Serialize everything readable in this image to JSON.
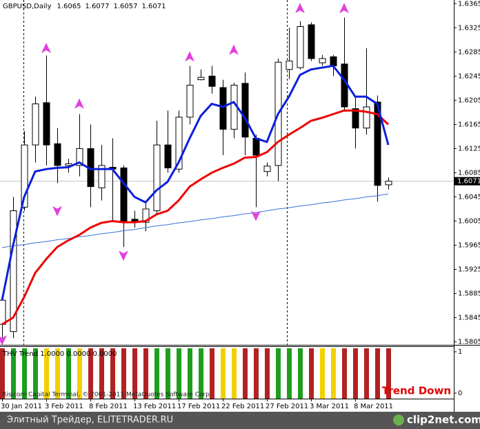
{
  "chart_data": [
    {
      "type": "candlestick",
      "title": "GBPUSD,Daily",
      "categories": [
        "30 Jan 2011",
        null,
        null,
        null,
        "3 Feb 2011",
        null,
        null,
        null,
        "8 Feb 2011",
        null,
        null,
        null,
        "13 Feb 2011",
        null,
        null,
        null,
        "17 Feb 2011",
        null,
        null,
        null,
        "22 Feb 2011",
        null,
        null,
        null,
        "27 Feb 2011",
        null,
        null,
        null,
        "3 Mar 2011",
        null,
        null,
        null,
        "8 Mar 2011",
        null,
        null,
        null
      ],
      "open": [
        1.5834,
        1.5822,
        1.6028,
        1.6131,
        1.6201,
        1.6133,
        1.6097,
        1.6097,
        1.6125,
        1.606,
        1.6094,
        1.6093,
        1.6008,
        1.6003,
        1.6022,
        1.6131,
        1.6091,
        1.6177,
        1.6239,
        1.6245,
        1.6226,
        1.6157,
        1.6233,
        1.6142,
        1.6087,
        1.6097,
        1.6256,
        1.6259,
        1.633,
        1.6267,
        1.6277,
        1.6265,
        1.6191,
        1.6159,
        1.6202,
        1.6065
      ],
      "high": [
        1.5879,
        1.6045,
        1.6154,
        1.6211,
        1.6279,
        1.6159,
        1.6108,
        1.6182,
        1.6165,
        1.6131,
        1.6142,
        1.6097,
        1.6022,
        1.6037,
        1.6171,
        1.6188,
        1.6188,
        1.6262,
        1.6256,
        1.6262,
        1.6239,
        1.6234,
        1.6251,
        1.6148,
        1.6102,
        1.6274,
        1.6325,
        1.6336,
        1.6334,
        1.628,
        1.628,
        1.6342,
        1.6211,
        1.6291,
        1.6213,
        1.6077
      ],
      "low": [
        1.581,
        1.5811,
        1.6022,
        1.6102,
        1.6097,
        1.6068,
        1.6085,
        1.6079,
        1.6028,
        1.6039,
        1.6005,
        1.5962,
        1.5994,
        1.5988,
        1.6016,
        1.6085,
        1.6085,
        1.6165,
        1.6238,
        1.6216,
        1.6114,
        1.6142,
        1.6114,
        1.6028,
        1.6079,
        1.6071,
        1.624,
        1.6256,
        1.627,
        1.6262,
        1.6245,
        1.6188,
        1.6125,
        1.6148,
        1.6037,
        1.6057
      ],
      "close": [
        1.5874,
        1.6022,
        1.6131,
        1.6199,
        1.6131,
        1.6097,
        1.61,
        1.6125,
        1.6062,
        1.6097,
        1.6091,
        1.6003,
        1.6003,
        1.6025,
        1.6131,
        1.6093,
        1.6177,
        1.623,
        1.6243,
        1.6228,
        1.6157,
        1.623,
        1.6144,
        1.6114,
        1.6096,
        1.6268,
        1.627,
        1.6327,
        1.6274,
        1.6274,
        1.6262,
        1.6194,
        1.6159,
        1.6194,
        1.6064,
        1.6071
      ],
      "lines": [
        {
          "color": "#3a6fd8",
          "width": 1,
          "values": [
            1.5961,
            1.5964,
            1.5966,
            1.5969,
            1.5971,
            1.5974,
            1.5976,
            1.5979,
            1.5981,
            1.5984,
            1.5986,
            1.5989,
            1.5991,
            1.5994,
            1.5997,
            1.5999,
            1.6002,
            1.6004,
            1.6007,
            1.6009,
            1.6012,
            1.6014,
            1.6017,
            1.6019,
            1.6022,
            1.6025,
            1.6027,
            1.603,
            1.6032,
            1.6035,
            1.6037,
            1.604,
            1.6042,
            1.6045,
            1.6047,
            1.605
          ]
        },
        {
          "color": "#ee0000",
          "width": 3,
          "values": [
            1.5834,
            1.5845,
            1.5879,
            1.5919,
            1.5942,
            1.5962,
            1.5973,
            1.5982,
            1.5994,
            1.6002,
            1.6005,
            1.6003,
            1.6003,
            1.6005,
            1.6016,
            1.6022,
            1.6039,
            1.6062,
            1.6074,
            1.6085,
            1.6093,
            1.61,
            1.611,
            1.6111,
            1.6119,
            1.6136,
            1.6148,
            1.6159,
            1.6171,
            1.6176,
            1.6182,
            1.6188,
            1.6188,
            1.6186,
            1.6182,
            1.6165
          ]
        },
        {
          "color": "#0a1ee0",
          "width": 3,
          "values": [
            1.5874,
            1.5965,
            1.6045,
            1.6087,
            1.6091,
            1.6093,
            1.6094,
            1.6102,
            1.6091,
            1.6091,
            1.6091,
            1.6068,
            1.6045,
            1.6036,
            1.6056,
            1.607,
            1.6102,
            1.6142,
            1.6179,
            1.6199,
            1.6194,
            1.6202,
            1.6176,
            1.6142,
            1.6136,
            1.6182,
            1.6211,
            1.6247,
            1.6256,
            1.6259,
            1.6262,
            1.6239,
            1.6211,
            1.6211,
            1.6199,
            1.6131
          ]
        }
      ],
      "up_arrows": [
        null,
        null,
        null,
        null,
        1.6291,
        null,
        null,
        1.6199,
        null,
        null,
        null,
        null,
        null,
        null,
        null,
        null,
        null,
        1.6277,
        null,
        null,
        null,
        1.6288,
        null,
        null,
        null,
        null,
        null,
        1.6357,
        null,
        null,
        null,
        1.6357,
        null,
        null,
        null,
        null
      ],
      "down_arrows": [
        1.5808,
        null,
        null,
        null,
        null,
        1.6022,
        null,
        null,
        null,
        null,
        null,
        1.5948,
        null,
        null,
        null,
        null,
        null,
        null,
        null,
        null,
        null,
        null,
        null,
        1.6014,
        null,
        null,
        null,
        null,
        null,
        null,
        null,
        null,
        null,
        null,
        null,
        null
      ],
      "arrow_color": "#e040e0",
      "ylim": [
        1.58,
        1.6371
      ],
      "yticks": [
        1.6365,
        1.6325,
        1.6285,
        1.6245,
        1.6205,
        1.6165,
        1.6125,
        1.6085,
        1.6045,
        1.6005,
        1.5965,
        1.5925,
        1.5885,
        1.5845,
        1.5805
      ]
    },
    {
      "type": "bar",
      "title": "THV Trend 1.0000 0.0000 0.0000",
      "values": [
        1,
        1,
        1,
        1,
        1,
        1,
        1,
        1,
        1,
        1,
        1,
        1,
        1,
        1,
        1,
        1,
        1,
        1,
        1,
        1,
        1,
        1,
        1,
        1,
        1,
        1,
        1,
        1,
        1,
        1,
        1,
        1,
        1,
        1,
        1,
        1
      ],
      "colors": [
        "#b22222",
        "#1e9e1e",
        "#1e9e1e",
        "#1e9e1e",
        "#f2d000",
        "#f2d000",
        "#1e9e1e",
        "#f2d000",
        "#b22222",
        "#b22222",
        "#b22222",
        "#b22222",
        "#b22222",
        "#b22222",
        "#1e9e1e",
        "#1e9e1e",
        "#1e9e1e",
        "#1e9e1e",
        "#1e9e1e",
        "#b22222",
        "#f2d000",
        "#f2d000",
        "#b22222",
        "#b22222",
        "#b22222",
        "#1e9e1e",
        "#1e9e1e",
        "#1e9e1e",
        "#b22222",
        "#f2d000",
        "#f2d000",
        "#b22222",
        "#b22222",
        "#b22222",
        "#b22222",
        "#b22222"
      ],
      "ylim": [
        0,
        1
      ],
      "yticks": [
        1,
        0
      ],
      "annotation": "Trend Down",
      "watermark": "Risicom Capital Terminal, © 2001-2011 MetaQuotes Software Corp."
    }
  ],
  "footer": {
    "text": "Элитный Трейдер, ELITETRADER.RU",
    "logo": "clip2net.com"
  }
}
